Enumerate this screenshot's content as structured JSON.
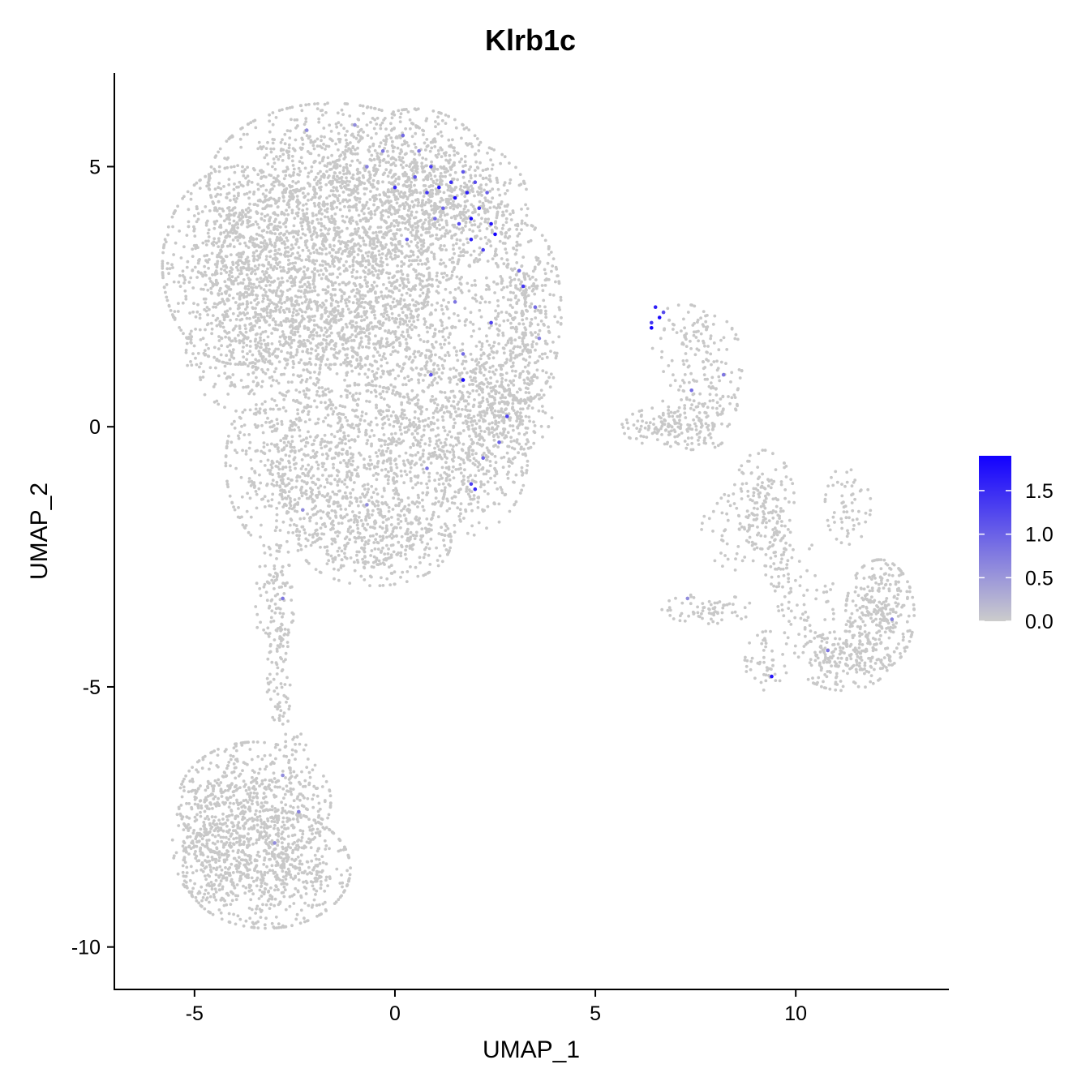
{
  "chart_data": {
    "type": "scatter",
    "title": "Klrb1c",
    "xlabel": "UMAP_1",
    "ylabel": "UMAP_2",
    "xlim": [
      -7,
      13.8
    ],
    "ylim": [
      -10.8,
      6.8
    ],
    "x_ticks": [
      -5,
      0,
      5,
      10
    ],
    "y_ticks": [
      -10,
      -5,
      0,
      5
    ],
    "x_tick_labels": [
      "-5",
      "0",
      "5",
      "10"
    ],
    "y_tick_labels": [
      "-10",
      "-5",
      "0",
      "5"
    ],
    "grid": false,
    "legend": {
      "placement": "right",
      "type": "colorbar",
      "range": [
        0,
        1.9
      ],
      "ticks": [
        0.0,
        0.5,
        1.0,
        1.5
      ],
      "tick_labels": [
        "0.0",
        "0.5",
        "1.0",
        "1.5"
      ],
      "low_color": "#cccccc",
      "high_color": "#1200ff"
    },
    "point_color_default": "#c8c8c8",
    "clusters": [
      {
        "cx": -1.6,
        "cy": 4.7,
        "sx": 1.6,
        "sy": 0.8,
        "n": 900
      },
      {
        "cx": -3.9,
        "cy": 3.1,
        "sx": 1.0,
        "sy": 1.0,
        "n": 800
      },
      {
        "cx": -1.8,
        "cy": 2.9,
        "sx": 1.4,
        "sy": 0.9,
        "n": 900
      },
      {
        "cx": 0.5,
        "cy": 4.4,
        "sx": 1.1,
        "sy": 0.9,
        "n": 650
      },
      {
        "cx": 1.8,
        "cy": 4.3,
        "sx": 0.8,
        "sy": 0.6,
        "n": 250
      },
      {
        "cx": 0.8,
        "cy": 2.6,
        "sx": 1.3,
        "sy": 0.9,
        "n": 500
      },
      {
        "cx": 3.2,
        "cy": 2.2,
        "sx": 0.5,
        "sy": 0.9,
        "n": 300
      },
      {
        "cx": 3.2,
        "cy": 0.9,
        "sx": 0.45,
        "sy": 0.7,
        "n": 180
      },
      {
        "cx": -3.5,
        "cy": 1.4,
        "sx": 0.9,
        "sy": 0.6,
        "n": 250
      },
      {
        "cx": -1.6,
        "cy": 1.5,
        "sx": 1.0,
        "sy": 0.6,
        "n": 300
      },
      {
        "cx": 0.4,
        "cy": 1.0,
        "sx": 1.2,
        "sy": 0.7,
        "n": 350
      },
      {
        "cx": -2.7,
        "cy": -0.7,
        "sx": 0.8,
        "sy": 0.9,
        "n": 450
      },
      {
        "cx": -0.8,
        "cy": -0.9,
        "sx": 1.1,
        "sy": 0.9,
        "n": 600
      },
      {
        "cx": 1.6,
        "cy": -0.6,
        "sx": 0.9,
        "sy": 0.8,
        "n": 500
      },
      {
        "cx": 2.4,
        "cy": 0.3,
        "sx": 0.5,
        "sy": 0.6,
        "n": 200
      },
      {
        "cx": -0.5,
        "cy": -2.2,
        "sx": 1.0,
        "sy": 0.45,
        "n": 300
      },
      {
        "cx": -3.0,
        "cy": -3.4,
        "sx": 0.25,
        "sy": 0.6,
        "n": 110
      },
      {
        "cx": -2.9,
        "cy": -5.0,
        "sx": 0.15,
        "sy": 0.6,
        "n": 60
      },
      {
        "cx": -2.5,
        "cy": -6.0,
        "sx": 0.15,
        "sy": 0.3,
        "n": 15
      },
      {
        "cx": -3.5,
        "cy": -7.2,
        "sx": 1.0,
        "sy": 0.6,
        "n": 550
      },
      {
        "cx": -3.2,
        "cy": -8.5,
        "sx": 1.1,
        "sy": 0.6,
        "n": 700
      },
      {
        "cx": -4.6,
        "cy": -8.0,
        "sx": 0.5,
        "sy": 0.6,
        "n": 200
      },
      {
        "cx": 6.8,
        "cy": 0.0,
        "sx": 0.6,
        "sy": 0.2,
        "n": 120
      },
      {
        "cx": 7.6,
        "cy": 0.3,
        "sx": 0.5,
        "sy": 0.4,
        "n": 110
      },
      {
        "cx": 7.2,
        "cy": 1.6,
        "sx": 0.45,
        "sy": 0.4,
        "n": 70
      },
      {
        "cx": 7.9,
        "cy": 1.2,
        "sx": 0.4,
        "sy": 0.5,
        "n": 60
      },
      {
        "cx": 9.2,
        "cy": -1.4,
        "sx": 0.4,
        "sy": 0.5,
        "n": 120
      },
      {
        "cx": 9.6,
        "cy": -2.4,
        "sx": 0.2,
        "sy": 0.6,
        "n": 80
      },
      {
        "cx": 7.8,
        "cy": -3.5,
        "sx": 0.6,
        "sy": 0.15,
        "n": 70
      },
      {
        "cx": 9.3,
        "cy": -4.5,
        "sx": 0.3,
        "sy": 0.3,
        "n": 50
      },
      {
        "cx": 12.1,
        "cy": -3.6,
        "sx": 0.45,
        "sy": 0.55,
        "n": 300
      },
      {
        "cx": 11.2,
        "cy": -4.5,
        "sx": 0.6,
        "sy": 0.3,
        "n": 200
      },
      {
        "cx": 11.3,
        "cy": -1.5,
        "sx": 0.3,
        "sy": 0.4,
        "n": 60
      },
      {
        "cx": 10.3,
        "cy": -3.4,
        "sx": 0.35,
        "sy": 0.6,
        "n": 60
      },
      {
        "cx": 8.6,
        "cy": -2.0,
        "sx": 0.5,
        "sy": 0.4,
        "n": 60
      }
    ],
    "expressing_points": [
      {
        "x": 0.2,
        "y": 5.6,
        "v": 0.9
      },
      {
        "x": 0.6,
        "y": 5.3,
        "v": 0.8
      },
      {
        "x": 0.9,
        "y": 5.0,
        "v": 1.3
      },
      {
        "x": 1.1,
        "y": 4.6,
        "v": 1.7
      },
      {
        "x": 1.4,
        "y": 4.7,
        "v": 1.5
      },
      {
        "x": 1.5,
        "y": 4.4,
        "v": 1.8
      },
      {
        "x": 1.7,
        "y": 4.9,
        "v": 1.1
      },
      {
        "x": 1.8,
        "y": 4.5,
        "v": 1.6
      },
      {
        "x": 2.0,
        "y": 4.7,
        "v": 1.2
      },
      {
        "x": 2.1,
        "y": 4.2,
        "v": 1.4
      },
      {
        "x": 2.3,
        "y": 4.5,
        "v": 1.0
      },
      {
        "x": 2.4,
        "y": 3.9,
        "v": 1.7
      },
      {
        "x": 2.5,
        "y": 3.7,
        "v": 1.9
      },
      {
        "x": 1.9,
        "y": 3.6,
        "v": 1.6
      },
      {
        "x": 1.6,
        "y": 3.9,
        "v": 1.2
      },
      {
        "x": 1.2,
        "y": 4.2,
        "v": 1.0
      },
      {
        "x": 0.8,
        "y": 4.5,
        "v": 1.4
      },
      {
        "x": 0.5,
        "y": 4.8,
        "v": 1.1
      },
      {
        "x": 0.0,
        "y": 4.6,
        "v": 1.5
      },
      {
        "x": -0.3,
        "y": 5.3,
        "v": 0.8
      },
      {
        "x": 1.0,
        "y": 4.0,
        "v": 0.9
      },
      {
        "x": 2.2,
        "y": 3.4,
        "v": 1.3
      },
      {
        "x": 0.3,
        "y": 3.6,
        "v": 1.0
      },
      {
        "x": -0.7,
        "y": 5.0,
        "v": 0.7
      },
      {
        "x": -2.2,
        "y": 5.7,
        "v": 0.6
      },
      {
        "x": -1.0,
        "y": 5.8,
        "v": 0.6
      },
      {
        "x": 3.1,
        "y": 3.0,
        "v": 1.0
      },
      {
        "x": 3.2,
        "y": 2.7,
        "v": 1.4
      },
      {
        "x": 3.5,
        "y": 2.3,
        "v": 0.9
      },
      {
        "x": 2.4,
        "y": 2.0,
        "v": 1.3
      },
      {
        "x": 1.5,
        "y": 2.4,
        "v": 0.8
      },
      {
        "x": 3.6,
        "y": 1.7,
        "v": 0.7
      },
      {
        "x": 1.7,
        "y": 1.4,
        "v": 0.9
      },
      {
        "x": 1.7,
        "y": 0.9,
        "v": 1.2
      },
      {
        "x": 1.7,
        "y": 0.9,
        "v": 1.8
      },
      {
        "x": 0.9,
        "y": 1.0,
        "v": 1.1
      },
      {
        "x": 2.8,
        "y": 0.2,
        "v": 1.3
      },
      {
        "x": 2.6,
        "y": -0.3,
        "v": 1.0
      },
      {
        "x": 2.0,
        "y": -1.2,
        "v": 1.5
      },
      {
        "x": 1.9,
        "y": -1.1,
        "v": 1.3
      },
      {
        "x": 2.2,
        "y": -0.6,
        "v": 1.0
      },
      {
        "x": 0.8,
        "y": -0.8,
        "v": 0.8
      },
      {
        "x": -0.7,
        "y": -1.5,
        "v": 0.6
      },
      {
        "x": 6.5,
        "y": 2.3,
        "v": 1.6
      },
      {
        "x": 6.6,
        "y": 2.1,
        "v": 1.8
      },
      {
        "x": 6.4,
        "y": 2.0,
        "v": 1.4
      },
      {
        "x": 6.4,
        "y": 1.9,
        "v": 1.9
      },
      {
        "x": 6.7,
        "y": 2.2,
        "v": 1.2
      },
      {
        "x": 7.4,
        "y": 0.7,
        "v": 0.9
      },
      {
        "x": 8.2,
        "y": 1.0,
        "v": 0.8
      },
      {
        "x": 9.4,
        "y": -4.8,
        "v": 1.7
      },
      {
        "x": 10.8,
        "y": -4.3,
        "v": 0.8
      },
      {
        "x": 12.4,
        "y": -3.7,
        "v": 0.7
      },
      {
        "x": -2.8,
        "y": -3.3,
        "v": 0.8
      },
      {
        "x": -2.8,
        "y": -6.7,
        "v": 0.6
      },
      {
        "x": -2.4,
        "y": -7.4,
        "v": 0.7
      },
      {
        "x": -3.0,
        "y": -8.0,
        "v": 0.6
      },
      {
        "x": -2.3,
        "y": -1.6,
        "v": 0.6
      },
      {
        "x": 7.3,
        "y": -3.3,
        "v": 0.6
      },
      {
        "x": 1.9,
        "y": 4.0,
        "v": 1.8
      }
    ]
  }
}
